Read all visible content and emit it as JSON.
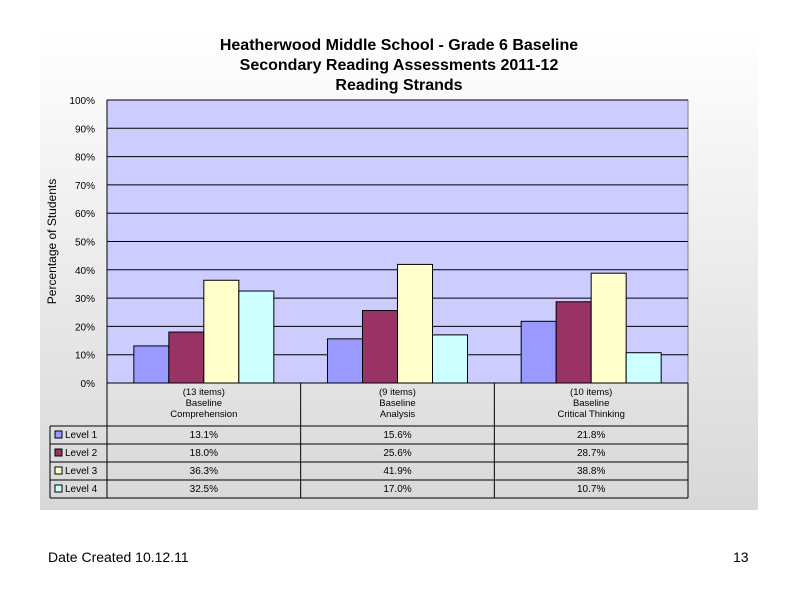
{
  "chart_data": {
    "type": "bar",
    "title": [
      "Heatherwood Middle School - Grade 6 Baseline",
      "Secondary Reading Assessments 2011-12",
      "Reading Strands"
    ],
    "ylabel": "Percentage of Students",
    "ylim": [
      0,
      100
    ],
    "yticks": [
      "0%",
      "10%",
      "20%",
      "30%",
      "40%",
      "50%",
      "60%",
      "70%",
      "80%",
      "90%",
      "100%"
    ],
    "grid": true,
    "categories": [
      [
        "(13 items)",
        "Baseline",
        "Comprehension"
      ],
      [
        "(9 items)",
        "Baseline",
        "Analysis"
      ],
      [
        "(10 items)",
        "Baseline",
        "Critical Thinking"
      ]
    ],
    "series": [
      {
        "name": "Level 1",
        "color": "#9999ff",
        "values": [
          13.1,
          15.6,
          21.8
        ],
        "labels": [
          "13.1%",
          "15.6%",
          "21.8%"
        ]
      },
      {
        "name": "Level 2",
        "color": "#993366",
        "values": [
          18.0,
          25.6,
          28.7
        ],
        "labels": [
          "18.0%",
          "25.6%",
          "28.7%"
        ]
      },
      {
        "name": "Level 3",
        "color": "#ffffcc",
        "values": [
          36.3,
          41.9,
          38.8
        ],
        "labels": [
          "36.3%",
          "41.9%",
          "38.8%"
        ]
      },
      {
        "name": "Level 4",
        "color": "#ccffff",
        "values": [
          32.5,
          17.0,
          10.7
        ],
        "labels": [
          "32.5%",
          "17.0%",
          "10.7%"
        ]
      }
    ],
    "plot_background": "#ccccff"
  },
  "footer": {
    "date_created": "Date Created  10.12.11",
    "page_number": "13"
  }
}
